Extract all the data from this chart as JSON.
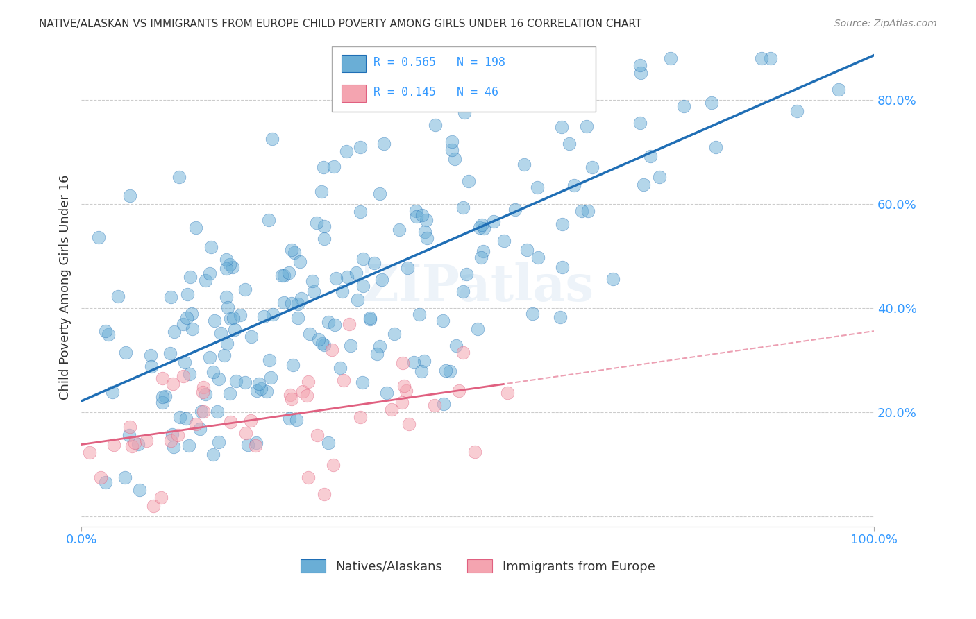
{
  "title": "NATIVE/ALASKAN VS IMMIGRANTS FROM EUROPE CHILD POVERTY AMONG GIRLS UNDER 16 CORRELATION CHART",
  "source": "Source: ZipAtlas.com",
  "ylabel": "Child Poverty Among Girls Under 16",
  "xlim": [
    0.0,
    1.0
  ],
  "ylim": [
    -0.02,
    0.9
  ],
  "yticks": [
    0.2,
    0.4,
    0.6,
    0.8
  ],
  "ytick_labels": [
    "20.0%",
    "40.0%",
    "60.0%",
    "80.0%"
  ],
  "blue_R": 0.565,
  "blue_N": 198,
  "pink_R": 0.145,
  "pink_N": 46,
  "blue_color": "#6aaed6",
  "pink_color": "#f4a4b0",
  "blue_line_color": "#1f6eb5",
  "pink_line_color": "#e06080",
  "legend_blue_label": "Natives/Alaskans",
  "legend_pink_label": "Immigrants from Europe",
  "background_color": "#ffffff",
  "grid_color": "#cccccc",
  "title_color": "#333333",
  "axis_label_color": "#333333",
  "tick_label_color": "#3399ff",
  "watermark": "ZIPatlas",
  "seed": 42
}
